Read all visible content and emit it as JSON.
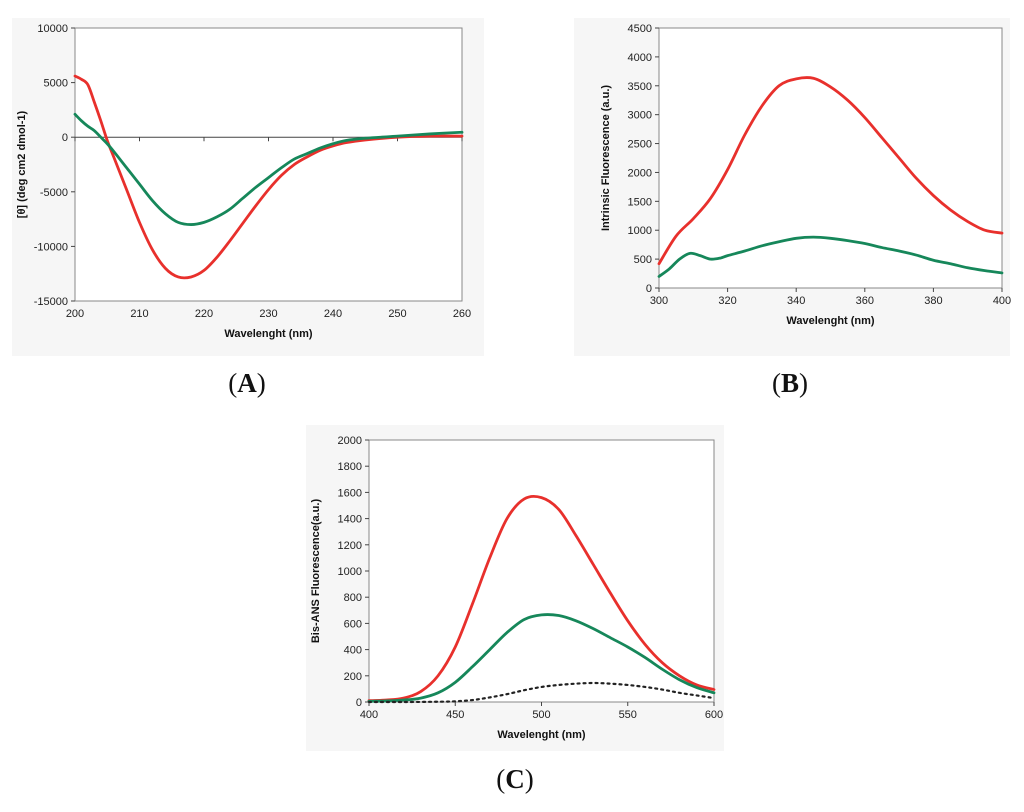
{
  "colors": {
    "red": "#e8302c",
    "green": "#16875a",
    "black": "#222222",
    "panel_bg": "#f6f6f6"
  },
  "panel_labels": {
    "a": "A",
    "b": "B",
    "c": "C"
  },
  "chart_data": [
    {
      "id": "A",
      "type": "line",
      "xlabel": "Wavelenght (nm)",
      "ylabel": "[θ] (deg cm2 dmol-1)",
      "xlim": [
        200,
        260
      ],
      "ylim": [
        -15000,
        10000
      ],
      "xticks": [
        200,
        210,
        220,
        230,
        240,
        250,
        260
      ],
      "yticks": [
        10000,
        5000,
        0,
        -5000,
        -10000,
        -15000
      ],
      "zero_axis": true,
      "series": [
        {
          "name": "red",
          "color": "#e8302c",
          "x": [
            200,
            201,
            202,
            203,
            204,
            205,
            206,
            208,
            210,
            212,
            214,
            216,
            218,
            220,
            222,
            224,
            226,
            228,
            230,
            232,
            234,
            236,
            238,
            240,
            242,
            245,
            250,
            255,
            260
          ],
          "y": [
            5600,
            5300,
            4800,
            3200,
            1500,
            -300,
            -1800,
            -4800,
            -7800,
            -10300,
            -12000,
            -12800,
            -12800,
            -12200,
            -11000,
            -9500,
            -7900,
            -6300,
            -4800,
            -3500,
            -2500,
            -1800,
            -1200,
            -800,
            -500,
            -250,
            0,
            100,
            100
          ]
        },
        {
          "name": "green",
          "color": "#16875a",
          "x": [
            200,
            201,
            202,
            203,
            204,
            205,
            206,
            208,
            210,
            212,
            214,
            216,
            218,
            220,
            222,
            224,
            226,
            228,
            230,
            232,
            234,
            236,
            238,
            240,
            242,
            245,
            250,
            255,
            260
          ],
          "y": [
            2100,
            1500,
            1000,
            600,
            0,
            -600,
            -1300,
            -2800,
            -4300,
            -5800,
            -7000,
            -7800,
            -8000,
            -7800,
            -7300,
            -6600,
            -5600,
            -4600,
            -3700,
            -2800,
            -2000,
            -1500,
            -1000,
            -600,
            -300,
            -100,
            100,
            300,
            450
          ]
        }
      ]
    },
    {
      "id": "B",
      "type": "line",
      "xlabel": "Wavelenght (nm)",
      "ylabel": "Intrinsic Fluorescence (a.u.)",
      "xlim": [
        300,
        400
      ],
      "ylim": [
        0,
        4500
      ],
      "xticks": [
        300,
        320,
        340,
        360,
        380,
        400
      ],
      "yticks": [
        4500,
        4000,
        3500,
        3000,
        2500,
        2000,
        1500,
        1000,
        500,
        0
      ],
      "series": [
        {
          "name": "red",
          "color": "#e8302c",
          "x": [
            300,
            305,
            310,
            315,
            320,
            325,
            330,
            335,
            340,
            345,
            350,
            355,
            360,
            365,
            370,
            375,
            380,
            385,
            390,
            395,
            400
          ],
          "y": [
            420,
            900,
            1200,
            1550,
            2050,
            2650,
            3150,
            3500,
            3620,
            3630,
            3480,
            3250,
            2950,
            2600,
            2250,
            1900,
            1600,
            1350,
            1150,
            1000,
            950
          ]
        },
        {
          "name": "green",
          "color": "#16875a",
          "x": [
            300,
            303,
            306,
            309,
            312,
            315,
            318,
            320,
            325,
            330,
            335,
            340,
            345,
            350,
            355,
            360,
            365,
            370,
            375,
            380,
            385,
            390,
            395,
            400
          ],
          "y": [
            200,
            330,
            500,
            600,
            560,
            500,
            520,
            560,
            640,
            730,
            800,
            860,
            880,
            860,
            820,
            770,
            700,
            640,
            570,
            480,
            420,
            350,
            300,
            260
          ]
        }
      ]
    },
    {
      "id": "C",
      "type": "line",
      "xlabel": "Wavelenght (nm)",
      "ylabel": "Bis-ANS Fluorescence(a.u.)",
      "xlim": [
        400,
        600
      ],
      "ylim": [
        0,
        2000
      ],
      "xticks": [
        400,
        450,
        500,
        550,
        600
      ],
      "yticks": [
        2000,
        1800,
        1600,
        1400,
        1200,
        1000,
        800,
        600,
        400,
        200,
        0
      ],
      "series": [
        {
          "name": "red",
          "color": "#e8302c",
          "x": [
            400,
            410,
            420,
            430,
            440,
            450,
            460,
            470,
            480,
            490,
            500,
            510,
            520,
            530,
            540,
            550,
            560,
            570,
            580,
            590,
            600
          ],
          "y": [
            10,
            15,
            30,
            80,
            200,
            420,
            750,
            1100,
            1400,
            1550,
            1560,
            1470,
            1270,
            1050,
            830,
            620,
            440,
            300,
            200,
            130,
            95
          ]
        },
        {
          "name": "green",
          "color": "#16875a",
          "x": [
            400,
            410,
            420,
            430,
            440,
            450,
            460,
            470,
            480,
            490,
            500,
            510,
            520,
            530,
            540,
            550,
            560,
            570,
            580,
            590,
            600
          ],
          "y": [
            5,
            8,
            15,
            30,
            70,
            150,
            270,
            400,
            530,
            630,
            665,
            660,
            620,
            560,
            490,
            420,
            340,
            250,
            170,
            110,
            70
          ]
        },
        {
          "name": "dotted",
          "color": "#222222",
          "dashed": true,
          "x": [
            400,
            420,
            440,
            450,
            460,
            470,
            480,
            490,
            500,
            510,
            520,
            530,
            540,
            550,
            560,
            570,
            580,
            590,
            600
          ],
          "y": [
            0,
            0,
            2,
            5,
            15,
            35,
            60,
            90,
            115,
            130,
            140,
            145,
            140,
            130,
            115,
            95,
            70,
            50,
            30
          ]
        }
      ]
    }
  ]
}
